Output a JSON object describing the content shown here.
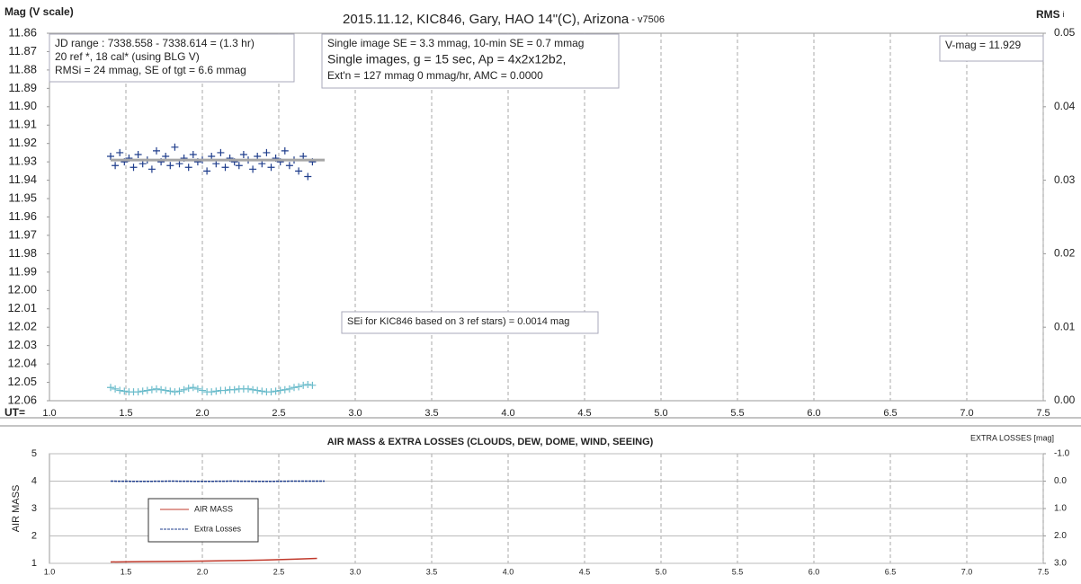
{
  "chart_data": [
    {
      "type": "scatter",
      "title": "2015.11.12,  KIC846, Gary, HAO  14\"(C), Arizona",
      "subtitle": " - v7506",
      "ylabel": "Mag (V scale)",
      "y2label": "RMS",
      "y2label_sub": "i",
      "xlabel": "UT=",
      "xlim": [
        1.0,
        7.5
      ],
      "xticks": [
        {
          "value": 1,
          "label": "1.0"
        },
        1.5,
        {
          "value": 2,
          "label": "2.0"
        },
        2.5,
        {
          "value": 3,
          "label": "3.0"
        },
        3.5,
        {
          "value": 4,
          "label": "4.0"
        },
        4.5,
        {
          "value": 5,
          "label": "5.0"
        },
        5.5,
        {
          "value": 6,
          "label": "6.0"
        },
        6.5,
        {
          "value": 7,
          "label": "7.0"
        },
        7.5
      ],
      "ylim": [
        12.06,
        11.86
      ],
      "yticks": [
        11.86,
        11.87,
        11.88,
        11.89,
        {
          "value": 11.9,
          "label": "11.90"
        },
        11.91,
        11.92,
        11.93,
        11.94,
        11.95,
        11.96,
        11.97,
        11.98,
        11.99,
        {
          "value": 12,
          "label": "12.00"
        },
        12.01,
        12.02,
        12.03,
        12.04,
        12.05,
        12.06
      ],
      "y2lim": [
        0,
        0.05
      ],
      "y2ticks": [
        {
          "value": 0,
          "label": "0.00"
        },
        0.01,
        0.02,
        0.03,
        0.04,
        0.05
      ],
      "xgrid": true,
      "annotations": [
        {
          "lines": [
            "JD range  : 7338.558 - 7338.614  = (1.3 hr)",
            "20 ref *, 18 cal* (using BLG V)",
            "RMSi = 24 mmag, SE of tgt = 6.6 mmag"
          ]
        },
        {
          "lines": [
            "Single image SE = 3.3 mmag, 10-min SE = 0.7 mmag",
            "Single images, g = 15 sec, Ap = 4x2x12b2,",
            "Ext'n = 127  mmag 0 mmag/hr, AMC = 0.0000"
          ]
        },
        {
          "lines": [
            "V-mag = 11.929"
          ]
        },
        {
          "lines": [
            "SEi for KIC846 based on 3 ref stars) = 0.0014 mag"
          ]
        }
      ],
      "series": [
        {
          "color": "#1f3d8c",
          "marker": "plus",
          "x": [
            1.4,
            1.43,
            1.46,
            1.49,
            1.52,
            1.55,
            1.58,
            1.61,
            1.64,
            1.67,
            1.7,
            1.73,
            1.76,
            1.79,
            1.82,
            1.85,
            1.88,
            1.91,
            1.94,
            1.97,
            2.0,
            2.03,
            2.06,
            2.09,
            2.12,
            2.15,
            2.18,
            2.21,
            2.24,
            2.27,
            2.3,
            2.33,
            2.36,
            2.39,
            2.42,
            2.45,
            2.48,
            2.51,
            2.54,
            2.57,
            2.6,
            2.63,
            2.66,
            2.69,
            2.72
          ],
          "values": [
            11.927,
            11.932,
            11.925,
            11.93,
            11.928,
            11.933,
            11.926,
            11.931,
            11.929,
            11.934,
            11.924,
            11.93,
            11.927,
            11.932,
            11.922,
            11.931,
            11.928,
            11.933,
            11.926,
            11.93,
            11.929,
            11.935,
            11.927,
            11.931,
            11.925,
            11.933,
            11.928,
            11.93,
            11.932,
            11.926,
            11.929,
            11.934,
            11.927,
            11.931,
            11.925,
            11.933,
            11.928,
            11.93,
            11.924,
            11.932,
            11.929,
            11.935,
            11.927,
            11.938,
            11.93
          ]
        },
        {
          "color": "#a6a6a6",
          "line": true,
          "x": [
            1.4,
            2.8
          ],
          "values": [
            11.929,
            11.929
          ]
        },
        {
          "color": "#6bbccb",
          "marker": "plus",
          "axis": "y2",
          "x": [
            1.4,
            1.43,
            1.46,
            1.49,
            1.52,
            1.55,
            1.58,
            1.61,
            1.64,
            1.67,
            1.7,
            1.73,
            1.76,
            1.79,
            1.82,
            1.85,
            1.88,
            1.91,
            1.94,
            1.97,
            2.0,
            2.03,
            2.06,
            2.09,
            2.12,
            2.15,
            2.18,
            2.21,
            2.24,
            2.27,
            2.3,
            2.33,
            2.36,
            2.39,
            2.42,
            2.45,
            2.48,
            2.51,
            2.54,
            2.57,
            2.6,
            2.63,
            2.66,
            2.69,
            2.72
          ],
          "values": [
            0.0018,
            0.0016,
            0.0014,
            0.0013,
            0.0012,
            0.0012,
            0.0012,
            0.0013,
            0.0014,
            0.0015,
            0.0016,
            0.0015,
            0.0014,
            0.0013,
            0.0012,
            0.0013,
            0.0015,
            0.0017,
            0.0018,
            0.0016,
            0.0014,
            0.0012,
            0.0012,
            0.0013,
            0.0014,
            0.0014,
            0.0015,
            0.0015,
            0.0016,
            0.0016,
            0.0016,
            0.0015,
            0.0014,
            0.0013,
            0.0012,
            0.0012,
            0.0013,
            0.0014,
            0.0015,
            0.0016,
            0.0018,
            0.0019,
            0.0021,
            0.0022,
            0.0021
          ]
        }
      ]
    },
    {
      "type": "line",
      "title": "AIR MASS & EXTRA LOSSES (CLOUDS, DEW, DOME, WIND, SEEING)",
      "ylabel": "AIR MASS",
      "y2label": "EXTRA LOSSES [mag]",
      "xlim": [
        1.0,
        7.5
      ],
      "xticks": [
        {
          "value": 1,
          "label": "1.0"
        },
        1.5,
        {
          "value": 2,
          "label": "2.0"
        },
        2.5,
        {
          "value": 3,
          "label": "3.0"
        },
        3.5,
        {
          "value": 4,
          "label": "4.0"
        },
        4.5,
        {
          "value": 5,
          "label": "5.0"
        },
        5.5,
        {
          "value": 6,
          "label": "6.0"
        },
        6.5,
        {
          "value": 7,
          "label": "7.0"
        },
        7.5
      ],
      "ylim": [
        1,
        5
      ],
      "yticks": [
        1,
        2,
        3,
        4,
        5
      ],
      "y2lim": [
        3.0,
        -1.0
      ],
      "y2ticks": [
        {
          "value": -1,
          "label": "-1.0"
        },
        {
          "value": 0,
          "label": "0.0"
        },
        {
          "value": 1,
          "label": "1.0"
        },
        {
          "value": 2,
          "label": "2.0"
        },
        {
          "value": 3,
          "label": "3.0"
        }
      ],
      "xgrid": true,
      "ygrid": true,
      "series": [
        {
          "name": "AIR MASS",
          "color": "#c0392b",
          "line": true,
          "x": [
            1.4,
            1.6,
            1.8,
            2.0,
            2.2,
            2.4,
            2.6,
            2.75
          ],
          "values": [
            1.05,
            1.06,
            1.07,
            1.08,
            1.1,
            1.12,
            1.15,
            1.18
          ]
        },
        {
          "name": "Extra Losses",
          "color": "#1f3d8c",
          "line": true,
          "dash": true,
          "axis": "y2",
          "x": [
            1.4,
            1.6,
            1.8,
            2.0,
            2.2,
            2.4,
            2.6,
            2.8
          ],
          "values": [
            0.0,
            0.01,
            0.0,
            0.01,
            0.0,
            0.01,
            0.0,
            0.0
          ]
        }
      ]
    }
  ]
}
